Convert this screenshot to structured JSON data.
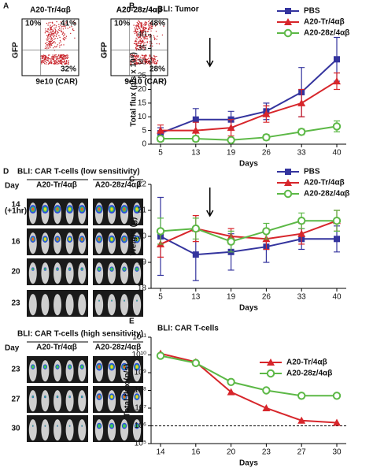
{
  "panel_labels": [
    "A",
    "B",
    "C",
    "D",
    "E"
  ],
  "flow": {
    "plots": [
      {
        "title": "A20-Tr/4αβ",
        "quadrants": [
          "10%",
          "41%",
          "32%"
        ]
      },
      {
        "title": "A20-28z/4αβ",
        "quadrants": [
          "10%",
          "48%",
          "28%"
        ]
      }
    ],
    "ylabel": "GFP",
    "xlabel": "9e10 (CAR)"
  },
  "imaging": {
    "day_label": "Day",
    "sections": [
      {
        "title": "BLI: CAR T-cells (low sensitivity)",
        "columns": [
          "A20-Tr/4αβ",
          "A20-28z/4αβ"
        ],
        "rows": [
          "14",
          "16",
          "20",
          "23"
        ],
        "note": "(+1hr)"
      },
      {
        "title": "BLI: CAR T-cells (high sensitivity)",
        "columns": [
          "A20-Tr/4αβ",
          "A20-28z/4αβ"
        ],
        "rows": [
          "23",
          "27",
          "30"
        ]
      }
    ]
  },
  "chart_data": [
    {
      "type": "line",
      "title": "BLI: Tumor",
      "xlabel": "Days",
      "ylabel": "Total flux (p/s x 10⁸)",
      "categories": [
        "5",
        "13",
        "19",
        "26",
        "33",
        "40"
      ],
      "ylim": [
        0,
        40
      ],
      "yticks": [
        0,
        5,
        10,
        15,
        20,
        25,
        30,
        35,
        40
      ],
      "series": [
        {
          "name": "PBS",
          "color": "#34349e",
          "marker": "square",
          "values": [
            4,
            9,
            9,
            12,
            19,
            31
          ],
          "errors": [
            2,
            4,
            3,
            3,
            9,
            8
          ]
        },
        {
          "name": "A20-Tr/4αβ",
          "color": "#d7262b",
          "marker": "triangle",
          "values": [
            5,
            5,
            6,
            11,
            15,
            23
          ],
          "errors": [
            2,
            3,
            3,
            3,
            5,
            3
          ]
        },
        {
          "name": "A20-28z/4αβ",
          "color": "#5cb846",
          "marker": "circle-open",
          "values": [
            2,
            2,
            1.5,
            2.5,
            4.5,
            6.5
          ],
          "errors": [
            1,
            1,
            0.5,
            1,
            1,
            2
          ]
        }
      ]
    },
    {
      "type": "line",
      "xlabel": "Days",
      "ylabel": "Weight (g)",
      "categories": [
        "5",
        "13",
        "19",
        "26",
        "33",
        "40"
      ],
      "ylim": [
        18,
        22
      ],
      "yticks": [
        18,
        19,
        20,
        21,
        22
      ],
      "series": [
        {
          "name": "PBS",
          "color": "#34349e",
          "marker": "square",
          "values": [
            20.0,
            19.3,
            19.4,
            19.6,
            19.9,
            19.9
          ],
          "errors": [
            1.5,
            1,
            0.7,
            0.6,
            0.4,
            0.5
          ]
        },
        {
          "name": "A20-Tr/4αβ",
          "color": "#d7262b",
          "marker": "triangle",
          "values": [
            19.7,
            20.3,
            20.0,
            19.9,
            20.1,
            20.6
          ],
          "errors": [
            0.5,
            0.5,
            0.3,
            0.4,
            0.4,
            0.4
          ]
        },
        {
          "name": "A20-28z/4αβ",
          "color": "#5cb846",
          "marker": "circle-open",
          "values": [
            20.2,
            20.3,
            19.8,
            20.2,
            20.6,
            20.6
          ],
          "errors": [
            0.5,
            0.4,
            0.4,
            0.3,
            0.3,
            0.4
          ]
        }
      ]
    },
    {
      "type": "line",
      "title": "BLI: CAR T-cells",
      "xlabel": "Days",
      "ylabel": "Total flux (p/s)",
      "categories": [
        "14",
        "16",
        "20",
        "23",
        "27",
        "30"
      ],
      "log_scale": true,
      "ylim": [
        100000,
        100000000000
      ],
      "yticks": [
        {
          "value": 100000,
          "label": "10⁵"
        },
        {
          "value": 1000000,
          "label": "10⁶"
        },
        {
          "value": 10000000,
          "label": "10⁷"
        },
        {
          "value": 100000000,
          "label": "10⁸"
        },
        {
          "value": 1000000000,
          "label": "10⁹"
        },
        {
          "value": 10000000000,
          "label": "10¹⁰"
        },
        {
          "value": 100000000000,
          "label": "10¹¹"
        }
      ],
      "reference_line": 1000000,
      "series": [
        {
          "name": "A20-Tr/4αβ",
          "color": "#d7262b",
          "marker": "triangle",
          "values": [
            12000000000,
            4000000000,
            80000000,
            10000000,
            2000000,
            1500000
          ]
        },
        {
          "name": "A20-28z/4αβ",
          "color": "#5cb846",
          "marker": "circle-open",
          "values": [
            9000000000,
            3500000000,
            300000000,
            100000000,
            50000000,
            50000000
          ]
        }
      ]
    }
  ]
}
